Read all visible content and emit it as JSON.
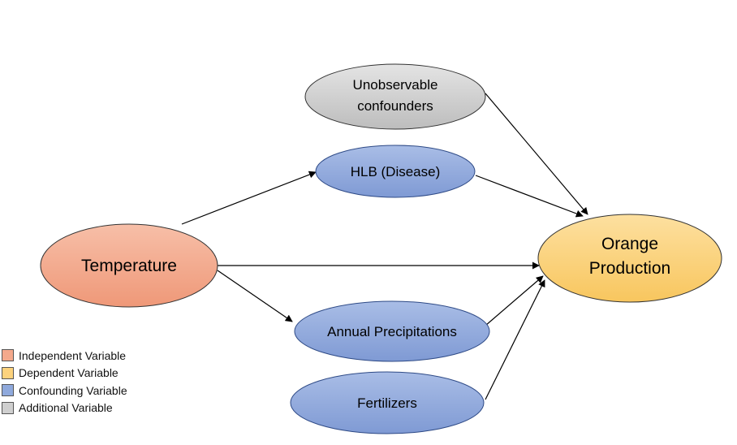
{
  "nodes": {
    "temperature": {
      "label": "Temperature",
      "color": "#f4a98c"
    },
    "unobservable": {
      "line1": "Unobservable",
      "line2": "confounders",
      "color": "#cfcfcf"
    },
    "hlb": {
      "label": "HLB (Disease)",
      "color": "#8fa9dc"
    },
    "orange": {
      "line1": "Orange",
      "line2": "Production",
      "color": "#fcd27d"
    },
    "precip": {
      "label": "Annual Precipitations",
      "color": "#8fa9dc"
    },
    "fertilizers": {
      "label": "Fertilizers",
      "color": "#8fa9dc"
    }
  },
  "legend": [
    {
      "label": "Independent Variable",
      "color": "#f4a98c"
    },
    {
      "label": "Dependent Variable",
      "color": "#fcd27d"
    },
    {
      "label": "Confounding Variable",
      "color": "#8fa9dc"
    },
    {
      "label": "Additional Variable",
      "color": "#cfcfcf"
    }
  ]
}
